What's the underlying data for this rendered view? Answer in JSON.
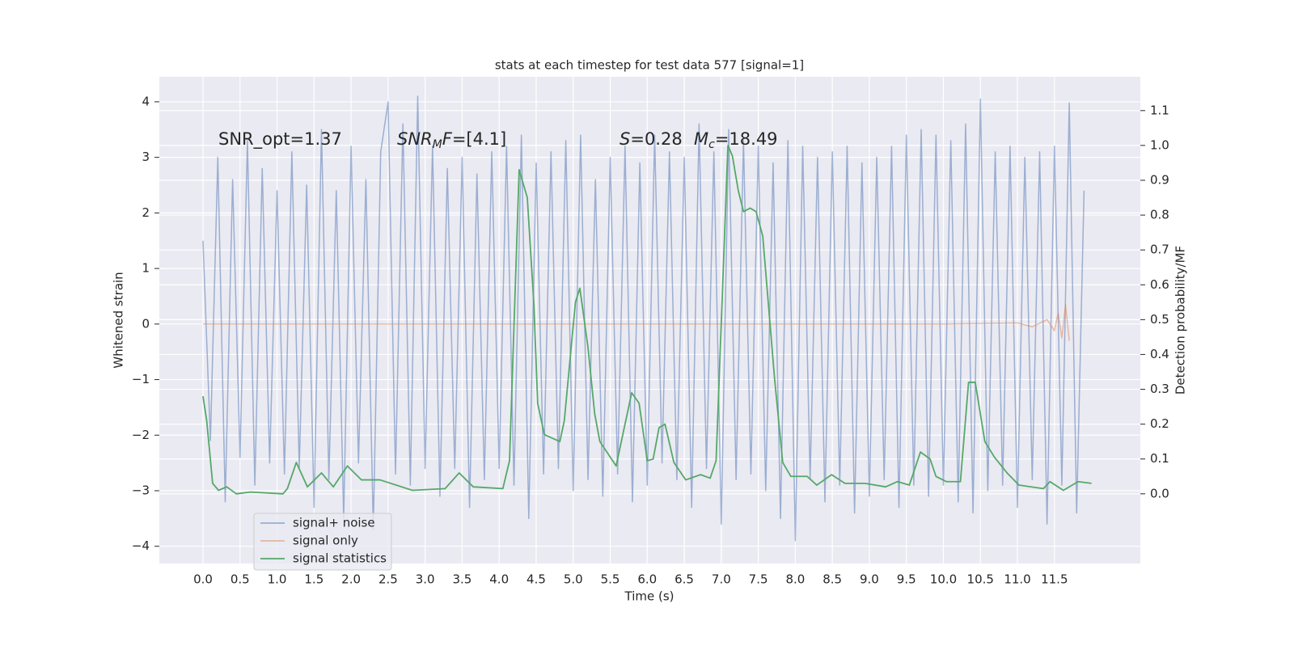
{
  "chart_data": {
    "type": "line",
    "title": "stats at each timestep for test data 577 [signal=1]",
    "xlabel": "Time (s)",
    "ylabel": "Whitened strain",
    "y2label": "Detection probability/MF",
    "xlim": [
      -0.59,
      12.66
    ],
    "ylim": [
      -4.31,
      4.45
    ],
    "y2lim": [
      -0.2,
      1.197
    ],
    "xticks": [
      {
        "value": 0,
        "label": "0.0"
      },
      {
        "value": 0.5,
        "label": "0.5"
      },
      {
        "value": 1,
        "label": "1.0"
      },
      {
        "value": 1.5,
        "label": "1.5"
      },
      {
        "value": 2,
        "label": "2.0"
      },
      {
        "value": 2.5,
        "label": "2.5"
      },
      {
        "value": 3,
        "label": "3.0"
      },
      {
        "value": 3.5,
        "label": "3.5"
      },
      {
        "value": 4,
        "label": "4.0"
      },
      {
        "value": 4.5,
        "label": "4.5"
      },
      {
        "value": 5,
        "label": "5.0"
      },
      {
        "value": 5.5,
        "label": "5.5"
      },
      {
        "value": 6,
        "label": "6.0"
      },
      {
        "value": 6.5,
        "label": "6.5"
      },
      {
        "value": 7,
        "label": "7.0"
      },
      {
        "value": 7.5,
        "label": "7.5"
      },
      {
        "value": 8,
        "label": "8.0"
      },
      {
        "value": 8.5,
        "label": "8.5"
      },
      {
        "value": 9,
        "label": "9.0"
      },
      {
        "value": 9.5,
        "label": "9.5"
      },
      {
        "value": 10,
        "label": "10.0"
      },
      {
        "value": 10.5,
        "label": "10.5"
      },
      {
        "value": 11,
        "label": "11.0"
      },
      {
        "value": 11.5,
        "label": "11.5"
      }
    ],
    "yticks": [
      {
        "value": -4,
        "label": "−4"
      },
      {
        "value": -3,
        "label": "−3"
      },
      {
        "value": -2,
        "label": "−2"
      },
      {
        "value": -1,
        "label": "−1"
      },
      0,
      1,
      2,
      3,
      4
    ],
    "y2ticks": [
      {
        "value": 0,
        "label": "0.0"
      },
      {
        "value": 0.1,
        "label": "0.1"
      },
      {
        "value": 0.2,
        "label": "0.2"
      },
      {
        "value": 0.3,
        "label": "0.3"
      },
      {
        "value": 0.4,
        "label": "0.4"
      },
      {
        "value": 0.5,
        "label": "0.5"
      },
      {
        "value": 0.6,
        "label": "0.6"
      },
      {
        "value": 0.7,
        "label": "0.7"
      },
      {
        "value": 0.8,
        "label": "0.8"
      },
      {
        "value": 0.9,
        "label": "0.9"
      },
      {
        "value": 1,
        "label": "1.0"
      },
      {
        "value": 1.1,
        "label": "1.1"
      }
    ],
    "grid": true,
    "legend": "lower left",
    "annotations": [
      [
        {
          "text": "SNR_opt=1.37",
          "style": "normal"
        }
      ],
      [
        {
          "text": "SNR",
          "style": "italic"
        },
        {
          "text": "M",
          "style": "sub"
        },
        {
          "text": "F",
          "style": "italic"
        },
        {
          "text": "=[4.1]",
          "style": "normal"
        }
      ],
      [
        {
          "text": "S",
          "style": "italic"
        },
        {
          "text": "=0.28",
          "style": "normal"
        }
      ],
      [
        {
          "text": "M",
          "style": "italic"
        },
        {
          "text": "c",
          "style": "sub"
        },
        {
          "text": "=18.49",
          "style": "normal"
        }
      ]
    ],
    "series": [
      {
        "name": "signal+ noise",
        "color": "#4c72b0",
        "alpha": 0.5,
        "x": [
          0,
          0.1,
          0.2,
          0.3,
          0.4,
          0.5,
          0.6,
          0.7,
          0.8,
          0.9,
          1,
          1.1,
          1.2,
          1.3,
          1.4,
          1.5,
          1.6,
          1.7,
          1.8,
          1.9,
          2,
          2.1,
          2.2,
          2.3,
          2.4,
          2.5,
          2.6,
          2.7,
          2.8,
          2.9,
          3,
          3.1,
          3.2,
          3.3,
          3.4,
          3.5,
          3.6,
          3.7,
          3.8,
          3.9,
          4,
          4.1,
          4.2,
          4.3,
          4.4,
          4.5,
          4.6,
          4.7,
          4.8,
          4.9,
          5,
          5.1,
          5.2,
          5.3,
          5.4,
          5.5,
          5.6,
          5.7,
          5.8,
          5.9,
          6,
          6.1,
          6.2,
          6.3,
          6.4,
          6.5,
          6.6,
          6.7,
          6.8,
          6.9,
          7,
          7.1,
          7.2,
          7.3,
          7.4,
          7.5,
          7.6,
          7.7,
          7.8,
          7.9,
          8,
          8.1,
          8.2,
          8.3,
          8.4,
          8.5,
          8.6,
          8.7,
          8.8,
          8.9,
          9,
          9.1,
          9.2,
          9.3,
          9.4,
          9.5,
          9.6,
          9.7,
          9.8,
          9.9,
          10,
          10.1,
          10.2,
          10.3,
          10.4,
          10.5,
          10.6,
          10.7,
          10.8,
          10.9,
          11,
          11.1,
          11.2,
          11.3,
          11.4,
          11.5,
          11.6,
          11.7,
          11.8,
          11.9
        ],
        "values": [
          1.5,
          -2.1,
          3.0,
          -3.2,
          2.6,
          -2.4,
          3.3,
          -2.9,
          2.8,
          -2.5,
          2.4,
          -2.7,
          3.1,
          -2.6,
          2.5,
          -3.3,
          3.5,
          -2.8,
          2.4,
          -3.5,
          3.2,
          -2.5,
          2.6,
          -3.7,
          3.1,
          4.0,
          -2.7,
          3.6,
          -2.9,
          4.1,
          -2.6,
          3.2,
          -3.1,
          2.8,
          -2.6,
          3.0,
          -3.3,
          2.7,
          -2.8,
          3.1,
          -2.6,
          3.2,
          -2.9,
          3.4,
          -3.5,
          2.9,
          -2.7,
          3.1,
          -2.6,
          3.3,
          -3.0,
          3.4,
          -2.8,
          2.6,
          -3.1,
          3.0,
          -2.7,
          3.2,
          -3.2,
          2.9,
          -2.9,
          3.4,
          -2.5,
          3.1,
          -2.8,
          3.0,
          -3.3,
          3.6,
          -2.6,
          3.1,
          -3.6,
          3.5,
          -2.8,
          3.3,
          -2.7,
          3.2,
          -3.0,
          2.9,
          -3.5,
          3.3,
          -3.9,
          3.2,
          -2.8,
          3.0,
          -3.2,
          3.1,
          -2.9,
          3.2,
          -3.4,
          2.9,
          -3.1,
          3.0,
          -2.8,
          3.2,
          -3.3,
          3.4,
          -2.9,
          3.5,
          -3.1,
          3.4,
          -2.9,
          3.3,
          -3.2,
          3.6,
          -3.4,
          4.05,
          -3.0,
          3.1,
          -2.9,
          3.2,
          -3.3,
          3.0,
          -2.8,
          3.1,
          -3.6,
          3.2,
          -2.9,
          3.98,
          -3.4,
          2.4
        ]
      },
      {
        "name": "signal only",
        "color": "#dd8452",
        "alpha": 0.5,
        "x": [
          0,
          1,
          2,
          3,
          4,
          5,
          6,
          7,
          8,
          9,
          10,
          11,
          11.2,
          11.4,
          11.5,
          11.55,
          11.6,
          11.65,
          11.7
        ],
        "values": [
          0,
          0,
          0,
          0,
          0,
          0,
          0,
          0,
          0,
          0,
          0,
          0.02,
          -0.05,
          0.08,
          -0.12,
          0.2,
          -0.25,
          0.35,
          -0.3
        ]
      },
      {
        "name": "signal statistics",
        "color": "#55a868",
        "axis": "y2",
        "x": [
          0,
          0.05,
          0.13,
          0.21,
          0.32,
          0.45,
          0.64,
          1.08,
          1.14,
          1.26,
          1.41,
          1.6,
          1.76,
          1.95,
          2.14,
          2.39,
          2.83,
          3.27,
          3.46,
          3.65,
          4.05,
          4.14,
          4.27,
          4.38,
          4.47,
          4.52,
          4.61,
          4.82,
          4.88,
          5.03,
          5.09,
          5.2,
          5.29,
          5.36,
          5.58,
          5.79,
          5.89,
          6.0,
          6.08,
          6.16,
          6.24,
          6.36,
          6.52,
          6.72,
          6.85,
          6.93,
          7.09,
          7.15,
          7.23,
          7.3,
          7.39,
          7.47,
          7.56,
          7.72,
          7.83,
          7.94,
          8.16,
          8.29,
          8.49,
          8.67,
          8.94,
          9.22,
          9.38,
          9.54,
          9.69,
          9.82,
          9.9,
          10.04,
          10.23,
          10.34,
          10.43,
          10.56,
          10.69,
          10.86,
          11.02,
          11.35,
          11.44,
          11.62,
          11.82,
          12.0
        ],
        "values": [
          0.28,
          0.21,
          0.03,
          0.01,
          0.02,
          0.0,
          0.005,
          0.0,
          0.015,
          0.09,
          0.02,
          0.06,
          0.02,
          0.08,
          0.04,
          0.04,
          0.01,
          0.015,
          0.06,
          0.02,
          0.015,
          0.095,
          0.93,
          0.85,
          0.54,
          0.26,
          0.17,
          0.15,
          0.21,
          0.55,
          0.59,
          0.42,
          0.23,
          0.15,
          0.08,
          0.29,
          0.26,
          0.095,
          0.1,
          0.19,
          0.2,
          0.09,
          0.04,
          0.055,
          0.045,
          0.095,
          1.0,
          0.97,
          0.87,
          0.81,
          0.82,
          0.81,
          0.74,
          0.33,
          0.09,
          0.05,
          0.05,
          0.025,
          0.055,
          0.03,
          0.03,
          0.02,
          0.035,
          0.025,
          0.12,
          0.1,
          0.05,
          0.035,
          0.035,
          0.32,
          0.32,
          0.15,
          0.105,
          0.06,
          0.025,
          0.015,
          0.035,
          0.01,
          0.035,
          0.03
        ]
      }
    ]
  }
}
